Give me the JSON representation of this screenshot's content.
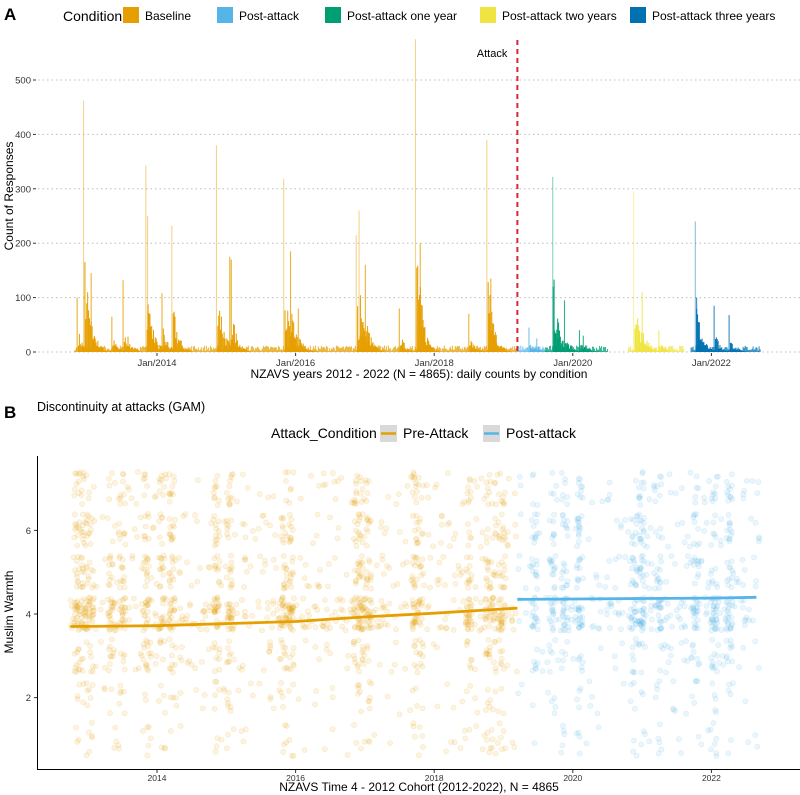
{
  "panel_labels": {
    "a": "A",
    "b": "B"
  },
  "chart_data": [
    {
      "type": "bar",
      "panel": "A",
      "legend": {
        "title": "Condition",
        "placement": "top",
        "entries": [
          {
            "name": "Baseline",
            "color": "#E69F00"
          },
          {
            "name": "Post-attack",
            "color": "#56B4E9"
          },
          {
            "name": "Post-attack one year",
            "color": "#009E73"
          },
          {
            "name": "Post-attack two years",
            "color": "#F0E442"
          },
          {
            "name": "Post-attack three years",
            "color": "#0072B2"
          }
        ]
      },
      "xlabel": "NZAVS years 2012 - 2022 (N = 4865): daily counts by condition",
      "ylabel": "Count of Responses",
      "ylim": [
        0,
        575
      ],
      "yticks": [
        0,
        100,
        200,
        300,
        400,
        500
      ],
      "xticks": [
        {
          "date": "2014-01-01",
          "label": "Jan/2014"
        },
        {
          "date": "2016-01-01",
          "label": "Jan/2016"
        },
        {
          "date": "2018-01-01",
          "label": "Jan/2018"
        },
        {
          "date": "2020-01-01",
          "label": "Jan/2020"
        },
        {
          "date": "2022-01-01",
          "label": "Jan/2022"
        }
      ],
      "grid": "horizontal dotted",
      "annotation": {
        "label": "Attack",
        "date": "2019-03-15",
        "color": "#D7263D",
        "style": "dashed"
      },
      "series": [
        {
          "name": "Baseline",
          "points": [
            [
              "2012-11-06",
              100
            ],
            [
              "2012-12-10",
              462
            ],
            [
              "2013-01-19",
              145
            ],
            [
              "2013-05-08",
              65
            ],
            [
              "2013-07-06",
              132
            ],
            [
              "2013-11-03",
              343
            ],
            [
              "2013-11-12",
              250
            ],
            [
              "2014-01-27",
              108
            ],
            [
              "2014-03-20",
              232
            ],
            [
              "2014-11-10",
              380
            ],
            [
              "2015-01-19",
              175
            ],
            [
              "2015-01-27",
              170
            ],
            [
              "2015-10-30",
              318
            ],
            [
              "2015-12-05",
              185
            ],
            [
              "2016-01-15",
              80
            ],
            [
              "2016-11-16",
              215
            ],
            [
              "2016-12-01",
              260
            ],
            [
              "2017-01-03",
              160
            ],
            [
              "2017-07-01",
              80
            ],
            [
              "2017-09-24",
              575
            ],
            [
              "2017-10-19",
              200
            ],
            [
              "2018-07-02",
              70
            ],
            [
              "2018-10-05",
              390
            ],
            [
              "2018-10-26",
              135
            ]
          ]
        },
        {
          "name": "Post-attack",
          "points": [
            [
              "2019-05-15",
              45
            ],
            [
              "2019-06-25",
              25
            ]
          ]
        },
        {
          "name": "Post-attack one year",
          "points": [
            [
              "2019-09-17",
              322
            ],
            [
              "2019-09-20",
              120
            ],
            [
              "2019-11-18",
              95
            ],
            [
              "2020-02-05",
              40
            ],
            [
              "2020-02-25",
              30
            ]
          ]
        },
        {
          "name": "Post-attack two years",
          "points": [
            [
              "2020-11-17",
              295
            ],
            [
              "2021-01-01",
              110
            ],
            [
              "2021-03-30",
              40
            ]
          ]
        },
        {
          "name": "Post-attack three years",
          "points": [
            [
              "2021-10-08",
              240
            ],
            [
              "2021-10-15",
              100
            ],
            [
              "2022-01-15",
              85
            ],
            [
              "2022-04-04",
              68
            ]
          ]
        }
      ]
    },
    {
      "type": "scatter",
      "panel": "B",
      "title": "Discontinuity at attacks (GAM)",
      "legend": {
        "title": "Attack_Condition",
        "placement": "top",
        "entries": [
          {
            "name": "Pre-Attack",
            "color": "#E69F00"
          },
          {
            "name": "Post-attack",
            "color": "#56B4E9"
          }
        ]
      },
      "xlabel": "NZAVS Time 4 - 2012 Cohort (2012-2022), N = 4865",
      "ylabel": "Muslim Warmth",
      "xlim": [
        2012.5,
        2022.95
      ],
      "ylim": [
        0.3,
        7.6
      ],
      "xticks": [
        "2014",
        "2016",
        "2018",
        "2020",
        "2022"
      ],
      "yticks": [
        "2",
        "4",
        "6"
      ],
      "response_levels": [
        1,
        2,
        3,
        4,
        5,
        6,
        7
      ],
      "points": "jittered individual responses (semi-transparent)",
      "gam_fit": [
        {
          "name": "Pre-Attack",
          "x": [
            2012.75,
            2014,
            2016,
            2017,
            2018,
            2019.2
          ],
          "y": [
            3.7,
            3.72,
            3.82,
            3.93,
            4.02,
            4.14
          ]
        },
        {
          "name": "Post-attack",
          "x": [
            2019.2,
            2020,
            2021,
            2022,
            2022.65
          ],
          "y": [
            4.35,
            4.36,
            4.37,
            4.38,
            4.4
          ]
        }
      ]
    }
  ]
}
